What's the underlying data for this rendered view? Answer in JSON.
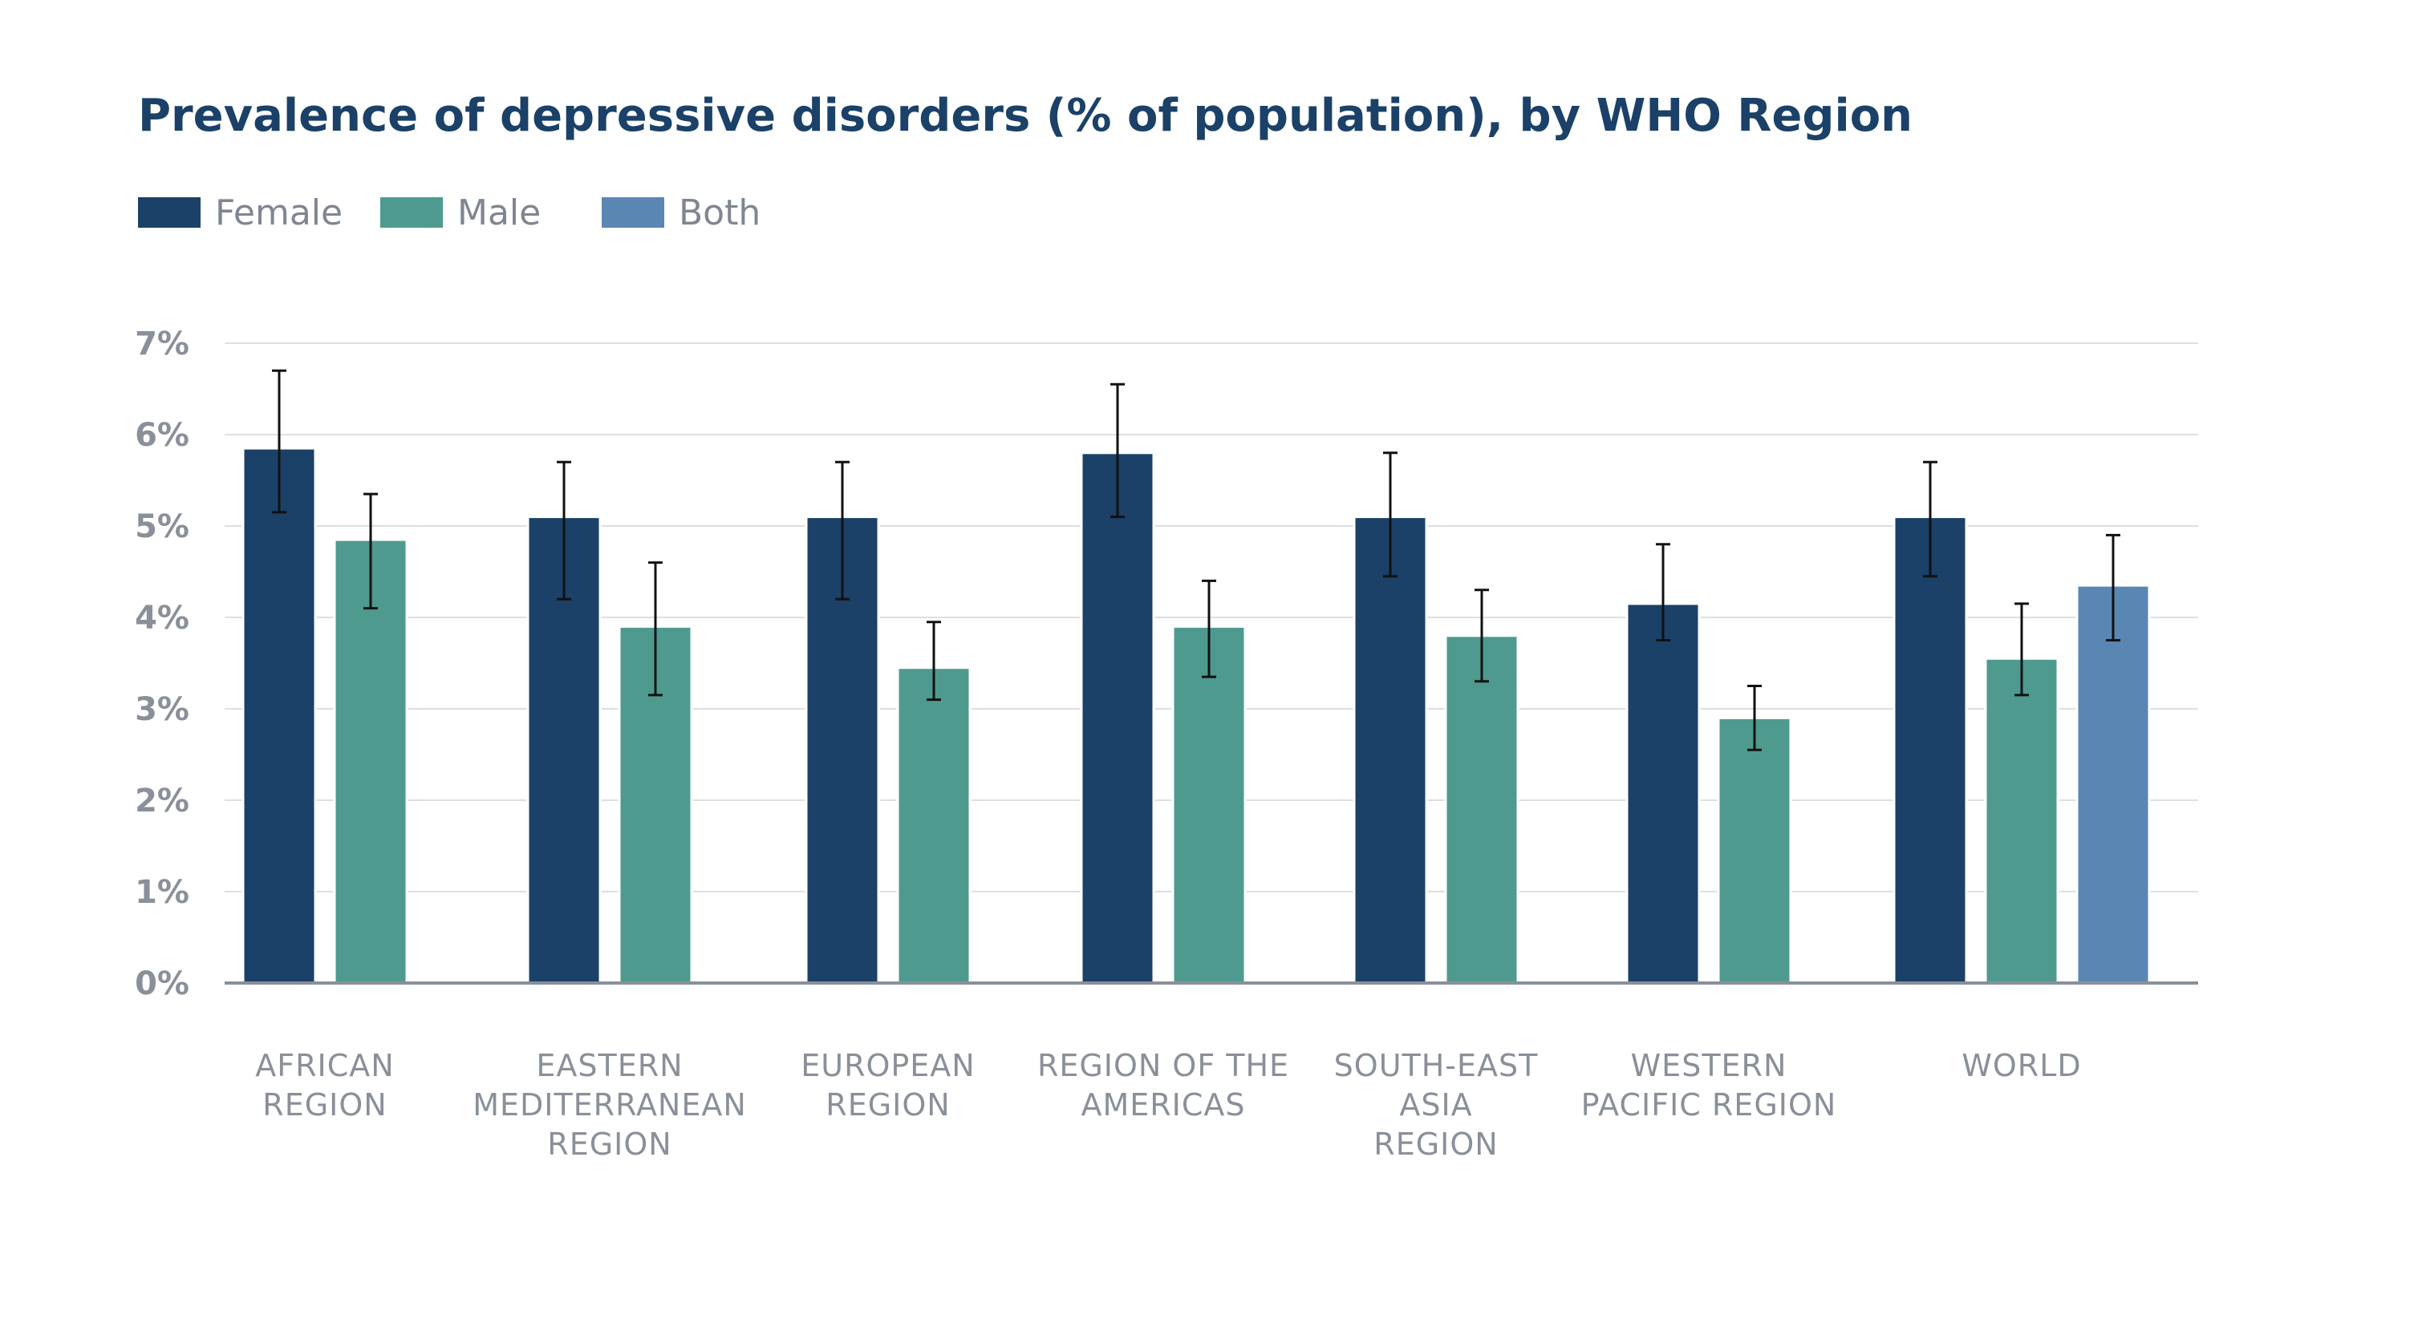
{
  "chart_data": {
    "type": "bar",
    "title": "Prevalence of depressive disorders (% of population), by WHO Region",
    "xlabel": "",
    "ylabel": "",
    "ylim": [
      0,
      7
    ],
    "y_ticks": [
      "0%",
      "1%",
      "2%",
      "3%",
      "4%",
      "5%",
      "6%",
      "7%"
    ],
    "grid": true,
    "legend_position": "top-left",
    "categories": [
      [
        "AFRICAN",
        "REGION"
      ],
      [
        "EASTERN",
        "MEDITERRANEAN",
        "REGION"
      ],
      [
        "EUROPEAN",
        "REGION"
      ],
      [
        "REGION OF THE",
        "AMERICAS"
      ],
      [
        "SOUTH-EAST",
        "ASIA",
        "REGION"
      ],
      [
        "WESTERN",
        "PACIFIC REGION"
      ],
      [
        "WORLD"
      ]
    ],
    "series": [
      {
        "name": "Female",
        "color": "#1b4168",
        "values": [
          5.85,
          5.1,
          5.1,
          5.8,
          5.1,
          4.15,
          5.1
        ],
        "error_low": [
          5.15,
          4.2,
          4.2,
          5.1,
          4.45,
          3.75,
          4.45
        ],
        "error_high": [
          6.7,
          5.7,
          5.7,
          6.55,
          5.8,
          4.8,
          5.7
        ]
      },
      {
        "name": "Male",
        "color": "#4f9a8f",
        "values": [
          4.85,
          3.9,
          3.45,
          3.9,
          3.8,
          2.9,
          3.55
        ],
        "error_low": [
          4.1,
          3.15,
          3.1,
          3.35,
          3.3,
          2.55,
          3.15
        ],
        "error_high": [
          5.35,
          4.6,
          3.95,
          4.4,
          4.3,
          3.25,
          4.15
        ]
      },
      {
        "name": "Both",
        "color": "#5a86b3",
        "values": [
          null,
          null,
          null,
          null,
          null,
          null,
          4.35
        ],
        "error_low": [
          null,
          null,
          null,
          null,
          null,
          null,
          3.75
        ],
        "error_high": [
          null,
          null,
          null,
          null,
          null,
          null,
          4.9
        ]
      }
    ]
  }
}
